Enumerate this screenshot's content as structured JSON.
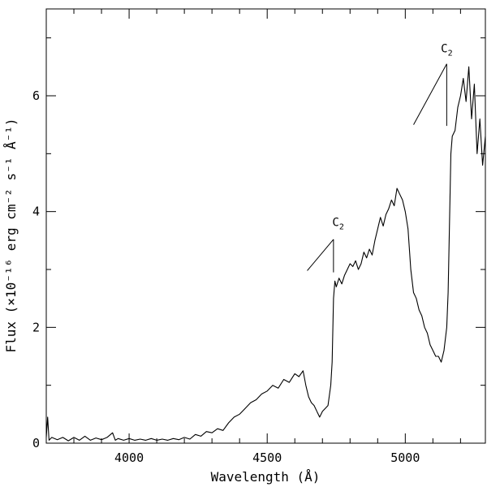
{
  "chart_data": {
    "type": "line",
    "title": "",
    "xlabel": "Wavelength (Å)",
    "ylabel": "Flux (×10⁻¹⁶ erg cm⁻² s⁻¹ Å⁻¹)",
    "xlim": [
      3700,
      5290
    ],
    "ylim": [
      0,
      7.5
    ],
    "x_major_ticks": [
      4000,
      4500,
      5000
    ],
    "x_minor_step": 100,
    "y_major_ticks": [
      0,
      2,
      4,
      6
    ],
    "y_minor_step": 1,
    "grid": false,
    "legend": "none",
    "series": [
      {
        "x": [
          3700,
          3705,
          3710,
          3720,
          3740,
          3760,
          3780,
          3800,
          3820,
          3840,
          3860,
          3880,
          3900,
          3920,
          3940,
          3950,
          3960,
          3980,
          4000,
          4020,
          4040,
          4060,
          4080,
          4100,
          4120,
          4140,
          4160,
          4180,
          4200,
          4220,
          4240,
          4260,
          4280,
          4300,
          4320,
          4340,
          4360,
          4380,
          4400,
          4420,
          4440,
          4460,
          4480,
          4500,
          4520,
          4540,
          4560,
          4580,
          4600,
          4615,
          4630,
          4640,
          4650,
          4660,
          4670,
          4680,
          4690,
          4700,
          4710,
          4720,
          4730,
          4735,
          4740,
          4745,
          4750,
          4760,
          4770,
          4780,
          4790,
          4800,
          4810,
          4820,
          4830,
          4840,
          4850,
          4860,
          4870,
          4880,
          4890,
          4900,
          4910,
          4920,
          4930,
          4940,
          4950,
          4960,
          4970,
          4980,
          4990,
          5000,
          5010,
          5020,
          5030,
          5040,
          5050,
          5060,
          5070,
          5080,
          5090,
          5100,
          5110,
          5120,
          5130,
          5140,
          5150,
          5155,
          5160,
          5165,
          5170,
          5180,
          5190,
          5200,
          5210,
          5220,
          5230,
          5240,
          5250,
          5260,
          5270,
          5280,
          5290
        ],
        "y": [
          0.1,
          0.45,
          0.05,
          0.1,
          0.06,
          0.1,
          0.04,
          0.1,
          0.05,
          0.12,
          0.05,
          0.09,
          0.06,
          0.1,
          0.18,
          0.05,
          0.08,
          0.05,
          0.08,
          0.05,
          0.07,
          0.05,
          0.08,
          0.05,
          0.07,
          0.05,
          0.08,
          0.06,
          0.1,
          0.07,
          0.15,
          0.12,
          0.2,
          0.18,
          0.25,
          0.22,
          0.35,
          0.45,
          0.5,
          0.6,
          0.7,
          0.75,
          0.85,
          0.9,
          1.0,
          0.95,
          1.1,
          1.05,
          1.2,
          1.15,
          1.25,
          1.0,
          0.8,
          0.7,
          0.65,
          0.55,
          0.45,
          0.55,
          0.6,
          0.65,
          1.0,
          1.4,
          2.5,
          2.8,
          2.7,
          2.85,
          2.75,
          2.9,
          3.0,
          3.1,
          3.05,
          3.15,
          3.0,
          3.1,
          3.3,
          3.2,
          3.35,
          3.25,
          3.5,
          3.7,
          3.9,
          3.75,
          3.95,
          4.05,
          4.2,
          4.1,
          4.4,
          4.3,
          4.2,
          4.0,
          3.7,
          3.0,
          2.6,
          2.5,
          2.3,
          2.2,
          2.0,
          1.9,
          1.7,
          1.6,
          1.5,
          1.5,
          1.4,
          1.6,
          2.0,
          2.6,
          3.8,
          5.0,
          5.3,
          5.4,
          5.8,
          6.0,
          6.3,
          5.9,
          6.5,
          5.6,
          6.2,
          5.0,
          5.6,
          4.8,
          5.3
        ],
        "color": "#000000"
      }
    ],
    "annotations": [
      {
        "label": "C",
        "subscript": "2",
        "text_x": 4757,
        "text_y": 3.75,
        "marker_x": 4740,
        "marker_y_top": 3.52,
        "marker_y_bottom": 2.95,
        "diag_x_start": 4645,
        "diag_y_start": 2.98
      },
      {
        "label": "C",
        "subscript": "2",
        "text_x": 5150,
        "text_y": 6.75,
        "marker_x": 5150,
        "marker_y_top": 6.55,
        "marker_y_bottom": 5.48,
        "diag_x_start": 5030,
        "diag_y_start": 5.5
      }
    ]
  }
}
